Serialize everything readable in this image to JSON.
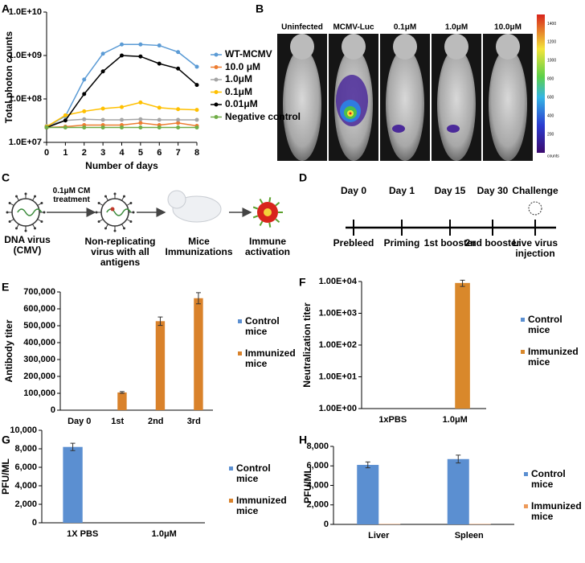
{
  "panel_labels": [
    "A",
    "B",
    "C",
    "D",
    "E",
    "F",
    "G",
    "H"
  ],
  "chart_data": [
    {
      "type": "line",
      "log_y": true,
      "xlabel": "Number of days",
      "ylabel": "Total photon counts",
      "x": [
        0,
        1,
        2,
        3,
        4,
        5,
        6,
        7,
        8
      ],
      "xlim": [
        0,
        8
      ],
      "xticks": [
        0,
        1,
        2,
        3,
        4,
        5,
        6,
        7,
        8
      ],
      "ylim": [
        10000000,
        10000000000
      ],
      "yticks": [
        {
          "value": 10000000,
          "label": "1.0E+07"
        },
        {
          "value": 100000000,
          "label": "1.0E+08"
        },
        {
          "value": 1000000000,
          "label": "1.0E+09"
        },
        {
          "value": 10000000000,
          "label": "1.0E+10"
        }
      ],
      "legend": "right",
      "series": [
        {
          "name": "WT-MCMV",
          "color": "#5b9bd5",
          "values": [
            23000000,
            40000000,
            280000000,
            1100000000,
            1800000000,
            1800000000,
            1700000000,
            1200000000,
            550000000
          ]
        },
        {
          "name": "10.0 μM",
          "color": "#ed7d31",
          "values": [
            22000000,
            23000000,
            25000000,
            25000000,
            25000000,
            28000000,
            25000000,
            28000000,
            24000000
          ]
        },
        {
          "name": "1.0μM",
          "color": "#a5a5a5",
          "values": [
            24000000,
            32000000,
            34000000,
            33000000,
            33000000,
            34000000,
            33000000,
            33000000,
            33000000
          ]
        },
        {
          "name": "0.1μM",
          "color": "#ffc000",
          "values": [
            23000000,
            42000000,
            52000000,
            60000000,
            65000000,
            83000000,
            63000000,
            58000000,
            56000000
          ]
        },
        {
          "name": "0.01μM",
          "color": "#000000",
          "values": [
            22000000,
            32000000,
            130000000,
            430000000,
            1000000000,
            950000000,
            650000000,
            500000000,
            210000000
          ]
        },
        {
          "name": "Negative control",
          "color": "#70ad47",
          "values": [
            22000000,
            22000000,
            22000000,
            22000000,
            22000000,
            22000000,
            22000000,
            22000000,
            22000000
          ]
        }
      ]
    },
    {
      "type": "bar",
      "ylabel": "Antibody titer",
      "categories": [
        "Day 0",
        "1st",
        "2nd",
        "3rd"
      ],
      "ylim": [
        0,
        700000
      ],
      "yticks": [
        0,
        {
          "value": 100000,
          "label": "100,000"
        },
        {
          "value": 200000,
          "label": "200,000"
        },
        {
          "value": 300000,
          "label": "300,000"
        },
        {
          "value": 400000,
          "label": "400,000"
        },
        {
          "value": 500000,
          "label": "500,000"
        },
        {
          "value": 600000,
          "label": "600,000"
        },
        {
          "value": 700000,
          "label": "700,000"
        }
      ],
      "legend": "right",
      "series": [
        {
          "name": "Control mice",
          "color": "#5b8fd1",
          "values": [
            0,
            0,
            0,
            0
          ]
        },
        {
          "name": "Immunized mice",
          "color": "#d9822b",
          "values": [
            0,
            105000,
            527000,
            663000
          ],
          "errors": [
            0,
            5000,
            25000,
            33000
          ]
        }
      ]
    },
    {
      "type": "bar",
      "log_y": true,
      "ylabel": "Neutralization titer",
      "categories": [
        "1xPBS",
        "1.0μM"
      ],
      "ylim": [
        1,
        10000
      ],
      "yticks": [
        {
          "value": 1,
          "label": "1.00E+00"
        },
        {
          "value": 10,
          "label": "1.00E+01"
        },
        {
          "value": 100,
          "label": "1.00E+02"
        },
        {
          "value": 1000,
          "label": "1.00E+03"
        },
        {
          "value": 10000,
          "label": "1.00E+04"
        }
      ],
      "legend": "right",
      "series": [
        {
          "name": "Control mice",
          "color": "#5b8fd1",
          "values": [
            1,
            null
          ]
        },
        {
          "name": "Immunized mice",
          "color": "#d9882b",
          "values": [
            null,
            9000
          ],
          "errors": [
            null,
            2000
          ]
        }
      ]
    },
    {
      "type": "bar",
      "ylabel": "PFU/ML",
      "categories": [
        "1X PBS",
        "1.0μM"
      ],
      "ylim": [
        0,
        10000
      ],
      "yticks": [
        0,
        {
          "value": 2000,
          "label": "2,000"
        },
        {
          "value": 4000,
          "label": "4,000"
        },
        {
          "value": 6000,
          "label": "6,000"
        },
        {
          "value": 8000,
          "label": "8,000"
        },
        {
          "value": 10000,
          "label": "10,000"
        }
      ],
      "legend": "right",
      "series": [
        {
          "name": "Control mice",
          "color": "#5b8fd1",
          "values": [
            8200,
            0
          ],
          "errors": [
            400,
            0
          ]
        },
        {
          "name": "Immunized mice",
          "color": "#d9822b",
          "values": [
            0,
            0
          ]
        }
      ]
    },
    {
      "type": "bar",
      "ylabel": "PFU/ML",
      "categories": [
        "Liver",
        "Spleen"
      ],
      "ylim": [
        0,
        8000
      ],
      "yticks": [
        0,
        {
          "value": 2000,
          "label": "2,000"
        },
        {
          "value": 4000,
          "label": "4,000"
        },
        {
          "value": 6000,
          "label": "6,000"
        },
        {
          "value": 8000,
          "label": "8,000"
        }
      ],
      "legend": "right",
      "series": [
        {
          "name": "Control mice",
          "color": "#5b8fd1",
          "values": [
            6100,
            6700
          ],
          "errors": [
            300,
            400
          ]
        },
        {
          "name": "Immunized mice",
          "color": "#ed9a5a",
          "values": [
            40,
            40
          ]
        }
      ]
    }
  ],
  "image_panel": {
    "columns": [
      "Uninfected",
      "MCMV-Luc",
      "0.1μM",
      "1.0μM",
      "10.0μM"
    ],
    "colorbar_ticks": [
      1400,
      1200,
      1000,
      800,
      600,
      400,
      200
    ],
    "colorbar_unit": "counts"
  },
  "diagram": {
    "virus": "DNA virus (CMV)",
    "treatment": "0.1μM CM treatment",
    "product": "Non-replicating virus with all antigens",
    "immunization": "Mice Immunizations",
    "outcome": "Immune activation"
  },
  "timeline": {
    "days": [
      "Day 0",
      "Day 1",
      "Day 15",
      "Day 30",
      "Challenge"
    ],
    "events": [
      "Prebleed",
      "Priming",
      "1st booster",
      "2nd booster",
      "Live virus injection"
    ]
  }
}
